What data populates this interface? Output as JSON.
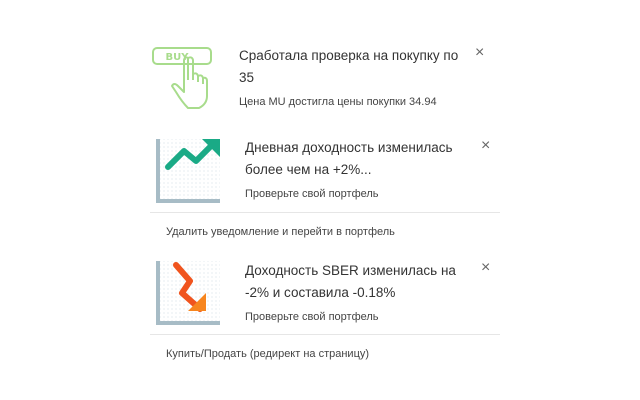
{
  "notifications": [
    {
      "icon": "buy-hand-icon",
      "icon_label": "BUY",
      "title": "Сработала проверка на покупку по 35",
      "subtitle": "Цена MU достигла цены покупки 34.94",
      "close": "×"
    },
    {
      "icon": "chart-up-icon",
      "title": "Дневная доходность изменилась более чем на +2%...",
      "subtitle": "Проверьте свой портфель",
      "close": "×",
      "action": "Удалить уведомление и перейти в портфель"
    },
    {
      "icon": "chart-down-icon",
      "title": "Доходность SBER изменилась на -2% и составила -0.18%",
      "subtitle": "Проверьте свой портфель",
      "close": "×",
      "action": "Купить/Продать (редирект на страницу)"
    }
  ],
  "colors": {
    "buy_green": "#a8dc8c",
    "up_teal": "#1aaa86",
    "down_orange": "#f0541e",
    "axis": "#a7bcc6"
  }
}
